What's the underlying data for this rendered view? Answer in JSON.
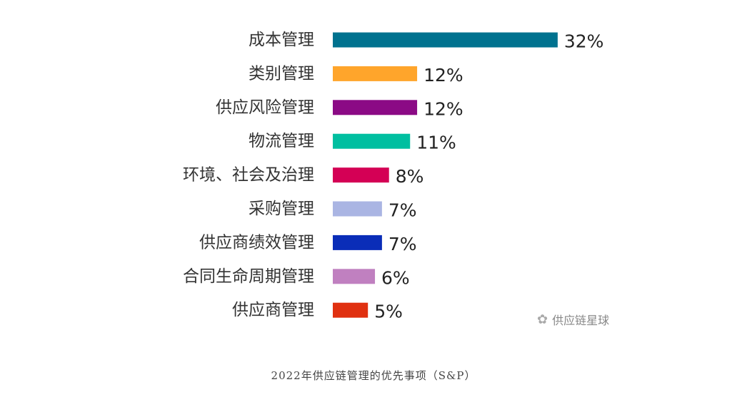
{
  "chart_data": {
    "type": "bar",
    "orientation": "horizontal",
    "categories": [
      "成本管理",
      "类别管理",
      "供应风险管理",
      "物流管理",
      "环境、社会及治理",
      "采购管理",
      "供应商绩效管理",
      "合同生命周期管理",
      "供应商管理"
    ],
    "values": [
      32,
      12,
      12,
      11,
      8,
      7,
      7,
      6,
      5
    ],
    "value_labels": [
      "32%",
      "12%",
      "12%",
      "11%",
      "8%",
      "7%",
      "7%",
      "6%",
      "5%"
    ],
    "colors": [
      "#00728f",
      "#ffa52b",
      "#8b0a85",
      "#00bfa0",
      "#d40055",
      "#aab5e3",
      "#0a2db8",
      "#c080c0",
      "#e03010"
    ],
    "unit": "%",
    "grid": false,
    "title": ""
  },
  "caption": "2022年供应链管理的优先事项（S&P）",
  "watermark": {
    "text": "供应链星球",
    "icon": "wechat-icon"
  }
}
